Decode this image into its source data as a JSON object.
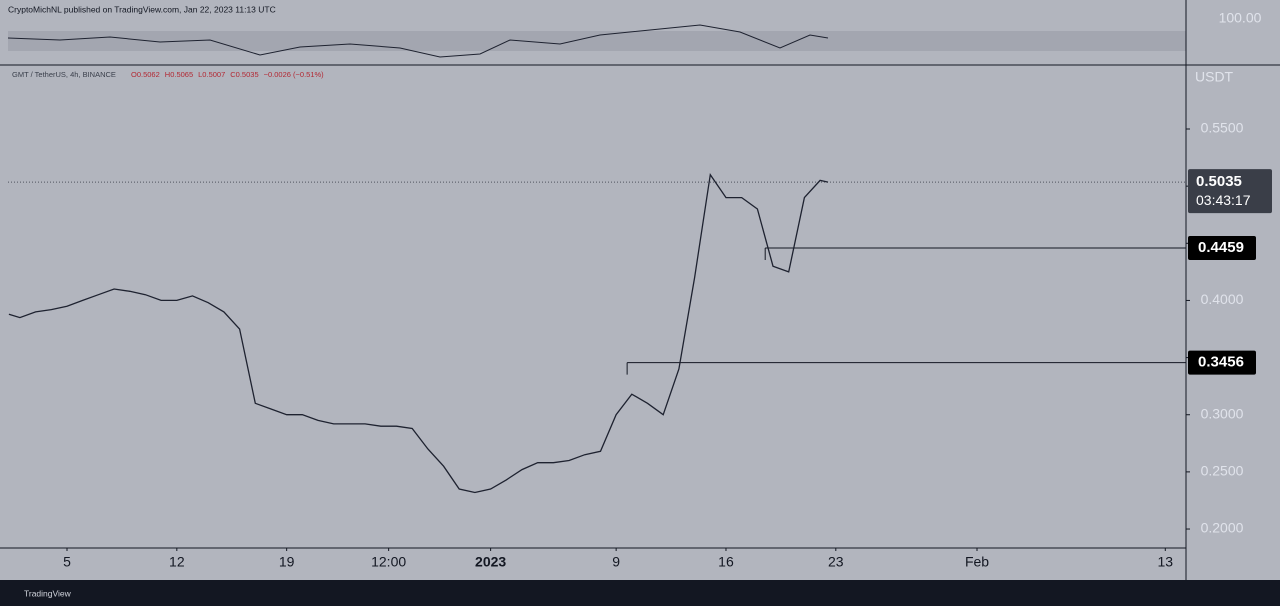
{
  "chart_data": {
    "type": "line",
    "attribution": "CryptoMichNL published on TradingView.com, Jan 22, 2023 11:13 UTC",
    "title": "GMT / TetherUS, 4h, BINANCE",
    "ohlc": [
      "O0.5062",
      "H0.5065",
      "L0.5007",
      "C0.5035",
      "−0.0026 (−0.51%)"
    ],
    "y_label": "USDT",
    "indicator_label": "100.00",
    "footer": "TradingView",
    "color": "#1e2230",
    "x": [
      -3.7,
      -3,
      -2,
      -1,
      0,
      1,
      2,
      3,
      4,
      5,
      6,
      7,
      8,
      9,
      10,
      11,
      12,
      13,
      14,
      15,
      16,
      17,
      18,
      19,
      20,
      21,
      22,
      23,
      24,
      25,
      26,
      27,
      28,
      29,
      30,
      31,
      32,
      33,
      34,
      35,
      36,
      37,
      38,
      39,
      40,
      41,
      42,
      43,
      44,
      45,
      46,
      47,
      48,
      48.5
    ],
    "values": [
      0.388,
      0.385,
      0.39,
      0.392,
      0.395,
      0.4,
      0.405,
      0.41,
      0.408,
      0.405,
      0.4,
      0.4,
      0.404,
      0.398,
      0.39,
      0.375,
      0.31,
      0.305,
      0.3,
      0.3,
      0.295,
      0.292,
      0.292,
      0.292,
      0.29,
      0.29,
      0.288,
      0.27,
      0.255,
      0.235,
      0.232,
      0.235,
      0.243,
      0.252,
      0.258,
      0.258,
      0.26,
      0.265,
      0.268,
      0.3,
      0.318,
      0.31,
      0.3,
      0.34,
      0.42,
      0.51,
      0.49,
      0.49,
      0.48,
      0.43,
      0.425,
      0.49,
      0.505,
      0.5035
    ],
    "xlim": [
      -3.76,
      71.32
    ],
    "xticks": [
      {
        "value": 0,
        "label": "5"
      },
      {
        "value": 7,
        "label": "12"
      },
      {
        "value": 14,
        "label": "19"
      },
      {
        "value": 20.5,
        "label": "12:00"
      },
      {
        "value": 27,
        "label": "2023"
      },
      {
        "value": 35,
        "label": "9"
      },
      {
        "value": 42,
        "label": "16"
      },
      {
        "value": 49,
        "label": "23"
      },
      {
        "value": 58,
        "label": "Feb"
      },
      {
        "value": 70,
        "label": "13"
      }
    ],
    "ylim": [
      0.1834,
      0.606
    ],
    "yticks": [
      {
        "value": 0.2,
        "label": "0.2000"
      },
      {
        "value": 0.25,
        "label": "0.2500"
      },
      {
        "value": 0.3,
        "label": "0.3000"
      },
      {
        "value": 0.35,
        "label": "0.3500"
      },
      {
        "value": 0.4,
        "label": "0.4000"
      },
      {
        "value": 0.45,
        "label": "0.4500"
      },
      {
        "value": 0.5,
        "label": "0.5000"
      },
      {
        "value": 0.55,
        "label": "0.5500"
      }
    ],
    "last_price": {
      "value": 0.5035,
      "countdown": "03:43:17"
    },
    "levels": [
      {
        "value": 0.4459,
        "from": 44.5
      },
      {
        "value": 0.3456,
        "from": 35.7
      }
    ]
  }
}
